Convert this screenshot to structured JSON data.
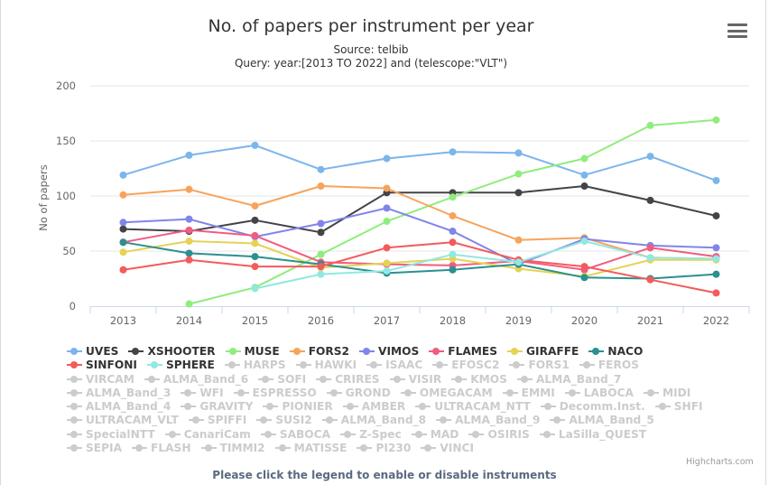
{
  "chart_data": {
    "type": "line",
    "title": "No. of papers per instrument per year",
    "subtitle_source": "Source: telbib",
    "subtitle_query": "Query: year:[2013 TO 2022] and (telescope:\"VLT\")",
    "ylabel": "No of papers",
    "xlabel": "",
    "ylim": [
      0,
      200
    ],
    "yticks": [
      0,
      50,
      100,
      150,
      200
    ],
    "categories": [
      "2013",
      "2014",
      "2015",
      "2016",
      "2017",
      "2018",
      "2019",
      "2020",
      "2021",
      "2022"
    ],
    "grid": true,
    "legend_position": "bottom",
    "series": [
      {
        "name": "UVES",
        "color": "#7cb5ec",
        "values": [
          119,
          137,
          146,
          124,
          134,
          140,
          139,
          119,
          136,
          114
        ]
      },
      {
        "name": "XSHOOTER",
        "color": "#434348",
        "values": [
          70,
          68,
          78,
          67,
          103,
          103,
          103,
          109,
          96,
          82
        ]
      },
      {
        "name": "MUSE",
        "color": "#90ed7d",
        "values": [
          null,
          2,
          17,
          47,
          77,
          99,
          120,
          134,
          164,
          169
        ]
      },
      {
        "name": "FORS2",
        "color": "#f7a35c",
        "values": [
          101,
          106,
          91,
          109,
          107,
          82,
          60,
          62,
          44,
          43
        ]
      },
      {
        "name": "VIMOS",
        "color": "#8085e9",
        "values": [
          76,
          79,
          63,
          75,
          89,
          68,
          38,
          61,
          55,
          53
        ]
      },
      {
        "name": "FLAMES",
        "color": "#f15c80",
        "values": [
          58,
          69,
          64,
          40,
          38,
          37,
          41,
          33,
          53,
          45
        ]
      },
      {
        "name": "GIRAFFE",
        "color": "#e4d354",
        "values": [
          49,
          59,
          57,
          35,
          39,
          43,
          34,
          27,
          42,
          42
        ]
      },
      {
        "name": "NACO",
        "color": "#2b908f",
        "values": [
          58,
          48,
          45,
          38,
          30,
          33,
          38,
          26,
          25,
          29
        ]
      },
      {
        "name": "SINFONI",
        "color": "#f45b5b",
        "values": [
          33,
          42,
          36,
          36,
          53,
          58,
          42,
          36,
          24,
          12
        ]
      },
      {
        "name": "SPHERE",
        "color": "#91e8e1",
        "values": [
          null,
          null,
          16,
          29,
          32,
          47,
          40,
          59,
          44,
          43
        ]
      }
    ]
  },
  "legend_rows": [
    [
      {
        "name": "UVES",
        "color": "#7cb5ec",
        "on": true
      },
      {
        "name": "XSHOOTER",
        "color": "#434348",
        "on": true
      },
      {
        "name": "MUSE",
        "color": "#90ed7d",
        "on": true
      },
      {
        "name": "FORS2",
        "color": "#f7a35c",
        "on": true
      },
      {
        "name": "VIMOS",
        "color": "#8085e9",
        "on": true
      },
      {
        "name": "FLAMES",
        "color": "#f15c80",
        "on": true
      },
      {
        "name": "GIRAFFE",
        "color": "#e4d354",
        "on": true
      },
      {
        "name": "NACO",
        "color": "#2b908f",
        "on": true
      }
    ],
    [
      {
        "name": "SINFONI",
        "color": "#f45b5b",
        "on": true
      },
      {
        "name": "SPHERE",
        "color": "#91e8e1",
        "on": true
      },
      {
        "name": "HARPS",
        "on": false
      },
      {
        "name": "HAWKI",
        "on": false
      },
      {
        "name": "ISAAC",
        "on": false
      },
      {
        "name": "EFOSC2",
        "on": false
      },
      {
        "name": "FORS1",
        "on": false
      },
      {
        "name": "FEROS",
        "on": false
      }
    ],
    [
      {
        "name": "VIRCAM",
        "on": false
      },
      {
        "name": "ALMA_Band_6",
        "on": false
      },
      {
        "name": "SOFI",
        "on": false
      },
      {
        "name": "CRIRES",
        "on": false
      },
      {
        "name": "VISIR",
        "on": false
      },
      {
        "name": "KMOS",
        "on": false
      },
      {
        "name": "ALMA_Band_7",
        "on": false
      }
    ],
    [
      {
        "name": "ALMA_Band_3",
        "on": false
      },
      {
        "name": "WFI",
        "on": false
      },
      {
        "name": "ESPRESSO",
        "on": false
      },
      {
        "name": "GROND",
        "on": false
      },
      {
        "name": "OMEGACAM",
        "on": false
      },
      {
        "name": "EMMI",
        "on": false
      },
      {
        "name": "LABOCA",
        "on": false
      },
      {
        "name": "MIDI",
        "on": false
      }
    ],
    [
      {
        "name": "ALMA_Band_4",
        "on": false
      },
      {
        "name": "GRAVITY",
        "on": false
      },
      {
        "name": "PIONIER",
        "on": false
      },
      {
        "name": "AMBER",
        "on": false
      },
      {
        "name": "ULTRACAM_NTT",
        "on": false
      },
      {
        "name": "Decomm.Inst.",
        "on": false
      },
      {
        "name": "SHFI",
        "on": false
      }
    ],
    [
      {
        "name": "ULTRACAM_VLT",
        "on": false
      },
      {
        "name": "SPIFFI",
        "on": false
      },
      {
        "name": "SUSI2",
        "on": false
      },
      {
        "name": "ALMA_Band_8",
        "on": false
      },
      {
        "name": "ALMA_Band_9",
        "on": false
      },
      {
        "name": "ALMA_Band_5",
        "on": false
      }
    ],
    [
      {
        "name": "SpecialNTT",
        "on": false
      },
      {
        "name": "CanariCam",
        "on": false
      },
      {
        "name": "SABOCA",
        "on": false
      },
      {
        "name": "Z-Spec",
        "on": false
      },
      {
        "name": "MAD",
        "on": false
      },
      {
        "name": "OSIRIS",
        "on": false
      },
      {
        "name": "LaSilla_QUEST",
        "on": false
      }
    ],
    [
      {
        "name": "SEPIA",
        "on": false
      },
      {
        "name": "FLASH",
        "on": false
      },
      {
        "name": "TIMMI2",
        "on": false
      },
      {
        "name": "MATISSE",
        "on": false
      },
      {
        "name": "PI230",
        "on": false
      },
      {
        "name": "VINCI",
        "on": false
      }
    ]
  ],
  "credit": "Highcharts.com",
  "hint": "Please click the legend to enable or disable instruments",
  "menu_icon": "hamburger-menu-icon"
}
